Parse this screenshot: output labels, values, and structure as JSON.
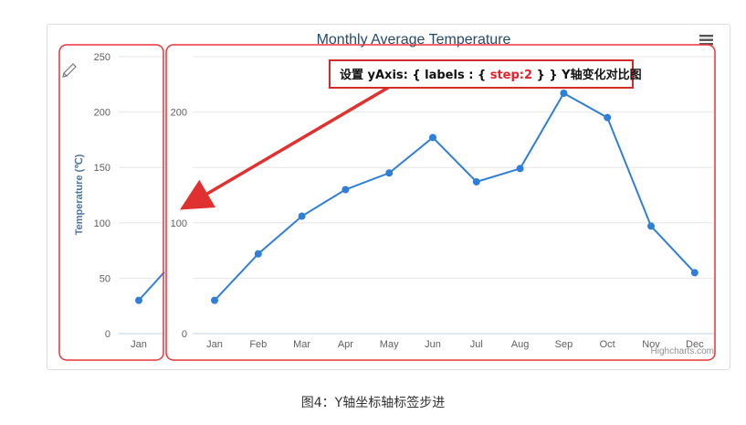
{
  "chart_data": [
    {
      "type": "line",
      "title": "Monthly Average Temperature",
      "xlabel": "",
      "ylabel": "Temperature (℃)",
      "ylim": [
        0,
        250
      ],
      "yticks": [
        "0",
        "50",
        "100",
        "150",
        "200",
        "250"
      ],
      "categories": [
        "Jan"
      ],
      "values": [
        30
      ],
      "grid": true
    },
    {
      "type": "line",
      "title": "",
      "xlabel": "",
      "ylabel": "",
      "ylim": [
        0,
        250
      ],
      "yticks": [
        "0",
        "100",
        "200"
      ],
      "categories": [
        "Jan",
        "Feb",
        "Mar",
        "Apr",
        "May",
        "Jun",
        "Jul",
        "Aug",
        "Sep",
        "Oct",
        "Nov",
        "Dec"
      ],
      "values": [
        30,
        72,
        106,
        130,
        145,
        177,
        137,
        149,
        217,
        195,
        97,
        55
      ],
      "grid": true,
      "color": "#2f7ed8"
    }
  ],
  "menu_icon": "hamburger-menu-icon",
  "annotation": {
    "prefix": "设置 yAxis: { labels : { ",
    "highlight": "step:2",
    "suffix": " } } Y轴变化对比图",
    "highlight_color": "#e8202a",
    "box_color": "#d42a2a"
  },
  "credit": "Highcharts.com",
  "caption": "图4：Y轴坐标轴标签步进",
  "colors": {
    "series": "#2f7ed8",
    "highlight": "#e8343a",
    "grid": "#e6e6e6"
  }
}
